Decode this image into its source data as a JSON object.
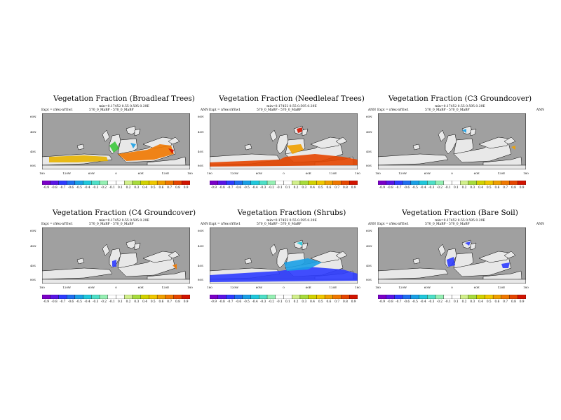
{
  "common": {
    "stats": "min=0.17452 0.55 0.595 0.29E",
    "expt": "Expt = nYex-nYEw1",
    "case": "570_0_MaBP - 570_0_MaBP",
    "season": "ANN",
    "lat_labels": [
      "60N",
      "40N",
      "40S",
      "80S"
    ],
    "lon_labels": [
      "180",
      "120W",
      "60W",
      "0",
      "60E",
      "120E",
      "180"
    ],
    "colorbar_labels": [
      "-0.9",
      "-0.8",
      "-0.7",
      "-0.6",
      "-0.5",
      "-0.4",
      "-0.3",
      "-0.2",
      "-0.1",
      "0.1",
      "0.2",
      "0.3",
      "0.4",
      "0.5",
      "0.6",
      "0.7",
      "0.8",
      "0.9"
    ],
    "colorbar_colors": [
      "#7b00c8",
      "#5a14e6",
      "#2e3cff",
      "#1f6ff0",
      "#1aa0e6",
      "#20c8dc",
      "#4ee0c8",
      "#96f0b4",
      "#ffffff",
      "#ffffff",
      "#d2f08c",
      "#a8dc3c",
      "#d2d200",
      "#f0c800",
      "#f0a000",
      "#f07800",
      "#e64600",
      "#d21400"
    ],
    "land_color": "#e8e8e8",
    "ocean_color": "#a0a0a0"
  },
  "panels": [
    {
      "title": "Vegetation Fraction (Broadleaf Trees)",
      "variant": "broadleaf"
    },
    {
      "title": "Vegetation Fraction (Needleleaf Trees)",
      "variant": "needleleaf"
    },
    {
      "title": "Vegetation Fraction (C3 Groundcover)",
      "variant": "c3"
    },
    {
      "title": "Vegetation Fraction (C4 Groundcover)",
      "variant": "c4"
    },
    {
      "title": "Vegetation Fraction (Shrubs)",
      "variant": "shrubs"
    },
    {
      "title": "Vegetation Fraction (Bare Soil)",
      "variant": "bare"
    }
  ]
}
